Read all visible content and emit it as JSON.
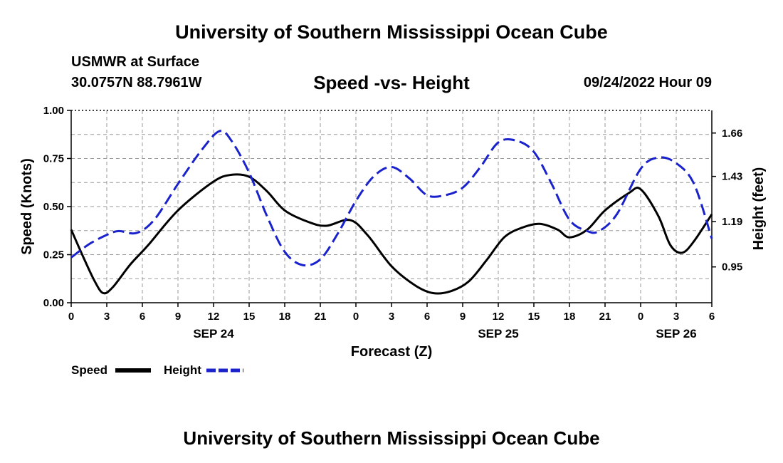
{
  "header": {
    "title": "University of Southern Mississippi Ocean Cube",
    "station": "USMWR at Surface",
    "location": "30.0757N  88.7961W",
    "datetime": "09/24/2022 Hour 09"
  },
  "footer": {
    "title": "University of Southern Mississippi Ocean Cube"
  },
  "legend": {
    "speed_label": "Speed",
    "height_label": "Height"
  },
  "colors": {
    "speed": "#000000",
    "height": "#1a22cc",
    "grid": "#9a9a9a"
  },
  "chart_data": {
    "type": "line",
    "title": "Speed -vs- Height",
    "xlabel": "Forecast (Z)",
    "ylabel": "Speed (Knots)",
    "y2label": "Height (feet)",
    "x_range_hours": [
      0,
      54
    ],
    "x_ticks": [
      {
        "h": 0,
        "label": "0"
      },
      {
        "h": 3,
        "label": "3"
      },
      {
        "h": 6,
        "label": "6"
      },
      {
        "h": 9,
        "label": "9"
      },
      {
        "h": 12,
        "label": "12"
      },
      {
        "h": 15,
        "label": "15"
      },
      {
        "h": 18,
        "label": "18"
      },
      {
        "h": 21,
        "label": "21"
      },
      {
        "h": 24,
        "label": "0"
      },
      {
        "h": 27,
        "label": "3"
      },
      {
        "h": 30,
        "label": "6"
      },
      {
        "h": 33,
        "label": "9"
      },
      {
        "h": 36,
        "label": "12"
      },
      {
        "h": 39,
        "label": "15"
      },
      {
        "h": 42,
        "label": "18"
      },
      {
        "h": 45,
        "label": "21"
      },
      {
        "h": 48,
        "label": "0"
      },
      {
        "h": 51,
        "label": "3"
      },
      {
        "h": 54,
        "label": "6"
      }
    ],
    "date_labels": [
      {
        "h": 12,
        "label": "SEP 24"
      },
      {
        "h": 36,
        "label": "SEP 25"
      },
      {
        "h": 51,
        "label": "SEP 26"
      }
    ],
    "y_range": [
      0,
      1.0
    ],
    "y_ticks": [
      "0.00",
      "0.25",
      "0.50",
      "0.75",
      "1.00"
    ],
    "y2_range": [
      0.76,
      1.78
    ],
    "y2_ticks": [
      "0.95",
      "1.19",
      "1.43",
      "1.66"
    ],
    "series": [
      {
        "name": "Speed",
        "axis": "left",
        "x": [
          0,
          1,
          2,
          2.7,
          3.5,
          5,
          6.5,
          9,
          12,
          13.5,
          15,
          16.5,
          18,
          20,
          21.5,
          23.5,
          25,
          27,
          29,
          30.5,
          32,
          33.5,
          35,
          36.5,
          38,
          39.5,
          41,
          42,
          43.5,
          45,
          47,
          48,
          49.5,
          50.5,
          51.5,
          52.5,
          54
        ],
        "values": [
          0.38,
          0.24,
          0.11,
          0.05,
          0.08,
          0.2,
          0.3,
          0.48,
          0.63,
          0.665,
          0.655,
          0.58,
          0.48,
          0.42,
          0.4,
          0.43,
          0.35,
          0.19,
          0.09,
          0.05,
          0.06,
          0.11,
          0.22,
          0.34,
          0.39,
          0.41,
          0.38,
          0.34,
          0.38,
          0.48,
          0.57,
          0.59,
          0.45,
          0.3,
          0.26,
          0.32,
          0.46
        ]
      },
      {
        "name": "Height",
        "axis": "right",
        "x": [
          0,
          1.5,
          3,
          4,
          5.5,
          7,
          9,
          11,
          12.5,
          13.5,
          15,
          16.5,
          18,
          19.5,
          21,
          22.5,
          24,
          25.5,
          27,
          28.5,
          30,
          31.5,
          33,
          34.5,
          36,
          37.5,
          39,
          40.5,
          42,
          43.5,
          44.5,
          46,
          48,
          49.5,
          51,
          52.5,
          54
        ],
        "values": [
          1.0,
          1.07,
          1.12,
          1.14,
          1.13,
          1.2,
          1.39,
          1.57,
          1.67,
          1.62,
          1.45,
          1.22,
          1.03,
          0.96,
          0.99,
          1.13,
          1.3,
          1.43,
          1.48,
          1.42,
          1.33,
          1.33,
          1.37,
          1.48,
          1.61,
          1.62,
          1.56,
          1.39,
          1.2,
          1.14,
          1.14,
          1.23,
          1.47,
          1.53,
          1.5,
          1.39,
          1.1
        ]
      }
    ]
  }
}
